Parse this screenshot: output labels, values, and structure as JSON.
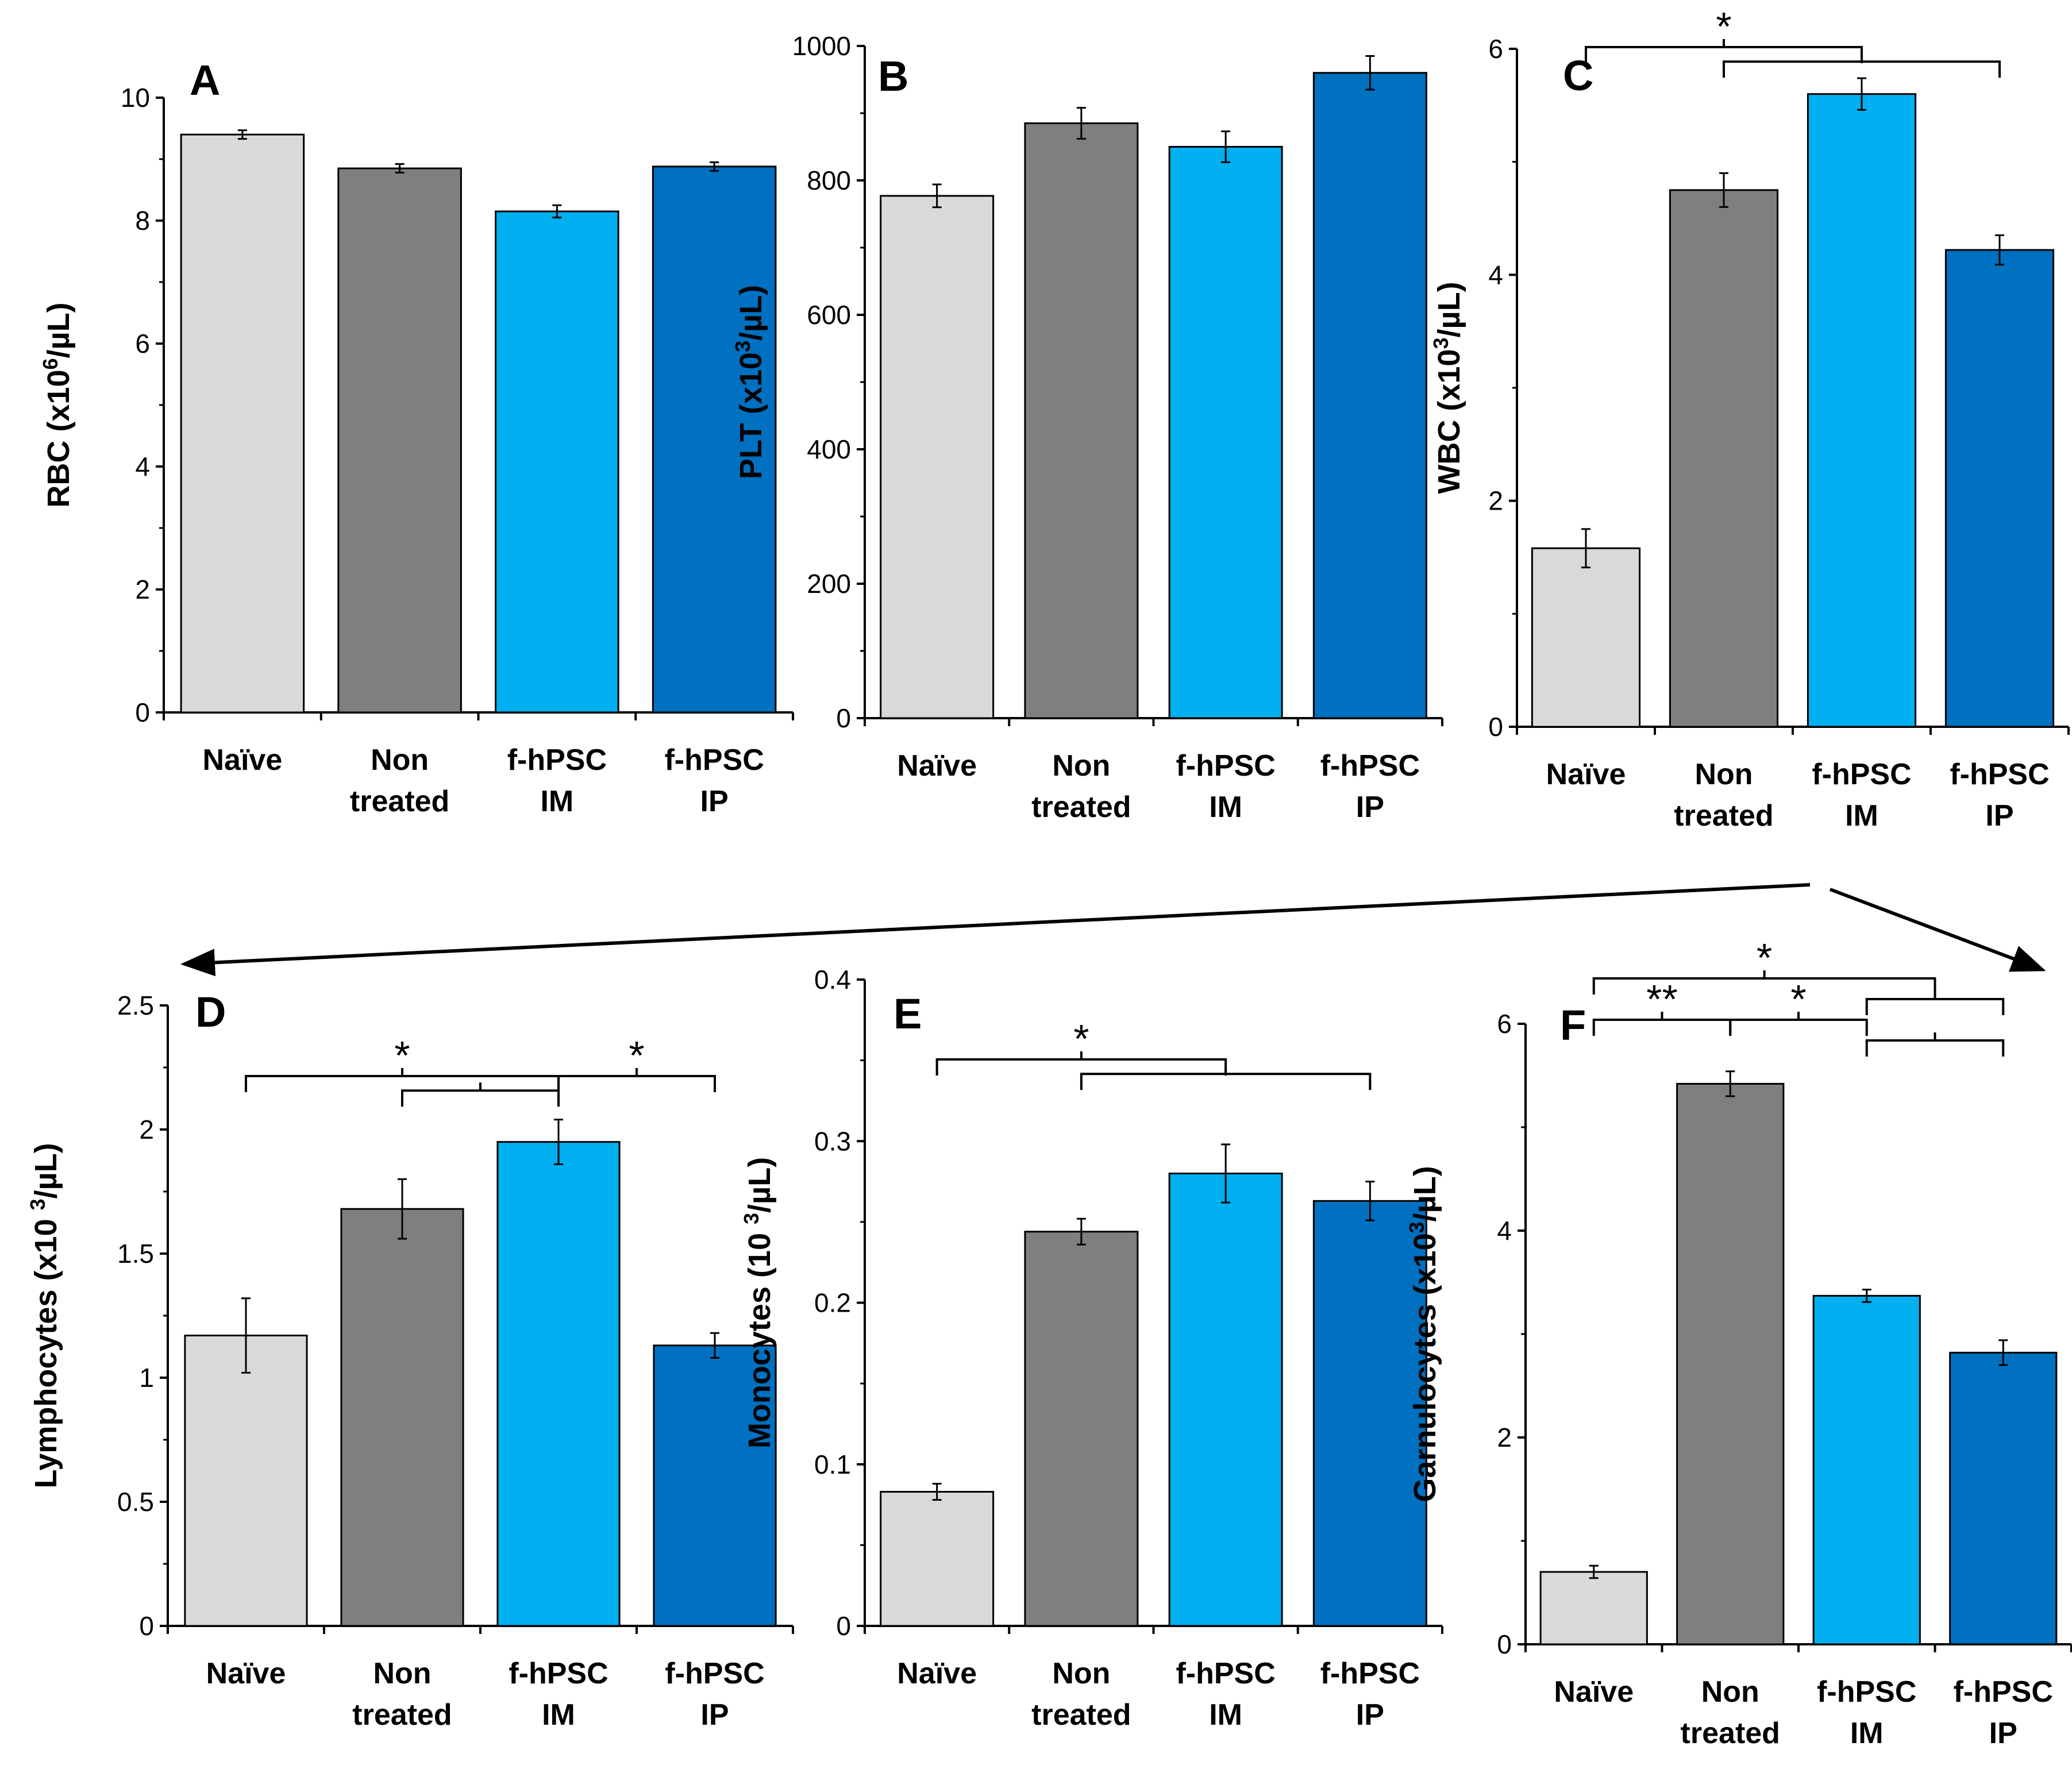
{
  "chart_data": [
    {
      "panel": "A",
      "type": "bar",
      "categories": [
        [
          "Naïve"
        ],
        [
          "Non",
          "treated"
        ],
        [
          "f-hPSC",
          "IM"
        ],
        [
          "f-hPSC",
          "IP"
        ]
      ],
      "values": [
        9.4,
        8.85,
        8.15,
        8.88
      ],
      "errors": [
        0.07,
        0.07,
        0.1,
        0.07
      ],
      "ylabel_parts": [
        "RBC (x10",
        "6",
        "/µL)"
      ],
      "ylim": [
        0,
        10
      ],
      "ticks": [
        "0",
        "2",
        "4",
        "6",
        "8",
        "10"
      ],
      "tick_values": [
        0,
        2,
        4,
        6,
        8,
        10
      ],
      "significance": []
    },
    {
      "panel": "B",
      "type": "bar",
      "categories": [
        [
          "Naïve"
        ],
        [
          "Non",
          "treated"
        ],
        [
          "f-hPSC",
          "IM"
        ],
        [
          "f-hPSC",
          "IP"
        ]
      ],
      "values": [
        777,
        885,
        850,
        960
      ],
      "errors": [
        17,
        23,
        23,
        25
      ],
      "ylabel_parts": [
        "PLT  (x10",
        "3",
        "/µL)"
      ],
      "ylim": [
        0,
        1000
      ],
      "ticks": [
        "0",
        "200",
        "400",
        "600",
        "800",
        "1000"
      ],
      "tick_values": [
        0,
        200,
        400,
        600,
        800,
        1000
      ],
      "significance": []
    },
    {
      "panel": "C",
      "type": "bar",
      "categories": [
        [
          "Naïve"
        ],
        [
          "Non",
          "treated"
        ],
        [
          "f-hPSC",
          "IM"
        ],
        [
          "f-hPSC",
          "IP"
        ]
      ],
      "values": [
        1.58,
        4.75,
        5.6,
        4.22
      ],
      "errors": [
        0.17,
        0.15,
        0.14,
        0.13
      ],
      "ylabel_parts": [
        "WBC (x10",
        "3",
        "/µL)"
      ],
      "ylim": [
        0,
        6
      ],
      "ticks": [
        "0",
        "2",
        "4",
        "6"
      ],
      "tick_values": [
        0,
        2,
        4,
        6
      ],
      "significance": [
        {
          "label": "*",
          "from": 0,
          "to": 2,
          "level": 0
        },
        {
          "label": "",
          "from": 1,
          "to": 3,
          "level": 1
        }
      ]
    },
    {
      "panel": "D",
      "type": "bar",
      "categories": [
        [
          "Naïve"
        ],
        [
          "Non",
          "treated"
        ],
        [
          "f-hPSC",
          "IM"
        ],
        [
          "f-hPSC",
          "IP"
        ]
      ],
      "values": [
        1.17,
        1.68,
        1.95,
        1.13
      ],
      "errors": [
        0.15,
        0.12,
        0.09,
        0.05
      ],
      "ylabel_parts": [
        "Lymphocytes (x10 ",
        "3",
        "/µL)"
      ],
      "ylim": [
        0,
        2.5
      ],
      "ticks": [
        "0",
        "0.5",
        "1",
        "1.5",
        "2",
        "2.5"
      ],
      "tick_values": [
        0,
        0.5,
        1,
        1.5,
        2,
        2.5
      ],
      "significance": [
        {
          "label": "*",
          "from": 0,
          "to": 2,
          "level": 0
        },
        {
          "label": "",
          "from": 1,
          "to": 2,
          "level": 1
        },
        {
          "label": "*",
          "from": 2,
          "to": 3,
          "level": 0
        }
      ]
    },
    {
      "panel": "E",
      "type": "bar",
      "categories": [
        [
          "Naïve"
        ],
        [
          "Non",
          "treated"
        ],
        [
          "f-hPSC",
          "IM"
        ],
        [
          "f-hPSC",
          "IP"
        ]
      ],
      "values": [
        0.083,
        0.244,
        0.28,
        0.263
      ],
      "errors": [
        0.005,
        0.008,
        0.018,
        0.012
      ],
      "ylabel_parts": [
        "Monocytes (10 ",
        "3",
        "/µL)"
      ],
      "ylim": [
        0,
        0.4
      ],
      "ticks": [
        "0",
        "0.1",
        "0.2",
        "0.3",
        "0.4"
      ],
      "tick_values": [
        0,
        0.1,
        0.2,
        0.3,
        0.4
      ],
      "significance": [
        {
          "label": "*",
          "from": 0,
          "to": 2,
          "level": 0
        },
        {
          "label": "",
          "from": 1,
          "to": 3,
          "level": 1
        }
      ]
    },
    {
      "panel": "F",
      "type": "bar",
      "categories": [
        [
          "Naïve"
        ],
        [
          "Non",
          "treated"
        ],
        [
          "f-hPSC",
          "IM"
        ],
        [
          "f-hPSC",
          "IP"
        ]
      ],
      "values": [
        0.7,
        5.42,
        3.37,
        2.82
      ],
      "errors": [
        0.06,
        0.12,
        0.06,
        0.12
      ],
      "ylabel_parts": [
        "Garnulocytes (x10",
        "3",
        "/µL)"
      ],
      "ylim": [
        0,
        6
      ],
      "ticks": [
        "0",
        "2",
        "4",
        "6"
      ],
      "tick_values": [
        0,
        2,
        4,
        6
      ],
      "significance": [
        {
          "label": "*",
          "from": 0,
          "to": 2.5,
          "level": 0
        },
        {
          "label": "",
          "from": 2,
          "to": 3,
          "level": 1
        },
        {
          "label": "**",
          "from": 0,
          "to": 1,
          "level": 2
        },
        {
          "label": "*",
          "from": 1,
          "to": 2,
          "level": 2
        },
        {
          "label": "",
          "from": 2,
          "to": 3,
          "level": 3
        }
      ]
    }
  ],
  "bar_colors": [
    "#d9d9d9",
    "#7f7f7f",
    "#00b0f0",
    "#0070c0"
  ]
}
